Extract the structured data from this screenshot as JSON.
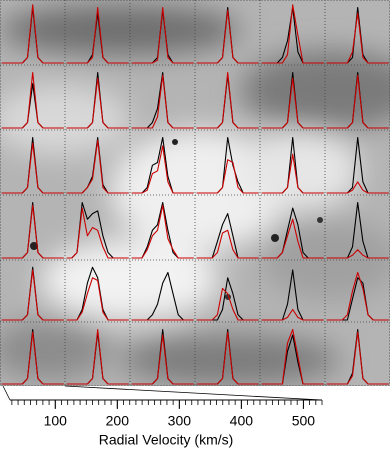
{
  "chart_data": {
    "type": "spectra-grid",
    "xlabel": "Radial Velocity (km/s)",
    "x": [
      40,
      80,
      120,
      160,
      200,
      240,
      280,
      320,
      360,
      400,
      440,
      480,
      520
    ],
    "xlim": [
      27,
      530
    ],
    "ylim": [
      0,
      1.1
    ],
    "xticks": [
      100,
      200,
      300,
      400,
      500
    ],
    "xminorticks": [
      30,
      40,
      50,
      60,
      70,
      80,
      90,
      100,
      110,
      120,
      130,
      140,
      150,
      160,
      170,
      180,
      190,
      200,
      210,
      220,
      230,
      240,
      250,
      260,
      270,
      280,
      290,
      300,
      310,
      320,
      330,
      340,
      350,
      360,
      370,
      380,
      390,
      400,
      410,
      420,
      430,
      440,
      450,
      460,
      470,
      480,
      490,
      500,
      510,
      520,
      530
    ],
    "series_colors": [
      "#000000",
      "#cc0000"
    ],
    "panels": [
      [
        [
          0,
          0,
          0,
          0,
          0,
          0.1,
          1,
          0.1,
          0,
          0,
          0,
          0,
          0
        ],
        [
          0,
          0,
          0,
          0,
          0,
          0.1,
          1.05,
          0.1,
          0,
          0,
          0,
          0,
          0
        ]
      ],
      [
        [
          0,
          0,
          0,
          0,
          0,
          0.15,
          0.9,
          0.1,
          0,
          0,
          0,
          0,
          0
        ],
        [
          0,
          0,
          0,
          0,
          0,
          0.1,
          1,
          0.1,
          0,
          0,
          0,
          0,
          0
        ]
      ],
      [
        [
          0,
          0,
          0,
          0,
          0,
          0.1,
          0.95,
          0.15,
          0,
          0,
          0,
          0,
          0
        ],
        [
          0,
          0,
          0,
          0,
          0,
          0.05,
          1,
          0.1,
          0,
          0,
          0,
          0,
          0
        ]
      ],
      [
        [
          0,
          0,
          0,
          0,
          0,
          0.1,
          1,
          0.1,
          0,
          0,
          0,
          0,
          0
        ],
        [
          0,
          0,
          0,
          0,
          0,
          0.1,
          0.95,
          0.1,
          0,
          0,
          0,
          0,
          0
        ]
      ],
      [
        [
          0,
          0,
          0,
          0,
          0.1,
          0.4,
          1,
          0.2,
          0,
          0,
          0,
          0,
          0
        ],
        [
          0,
          0,
          0,
          0,
          0,
          0.15,
          1.05,
          0.5,
          0,
          0,
          0,
          0,
          0
        ]
      ],
      [
        [
          0,
          0,
          0,
          0,
          0,
          0.1,
          1,
          0.15,
          0,
          0,
          0,
          0,
          0
        ],
        [
          0,
          0,
          0,
          0,
          0,
          0.2,
          0.9,
          0.1,
          0,
          0,
          0,
          0,
          0
        ]
      ],
      [
        [
          0,
          0,
          0,
          0,
          0,
          0.1,
          0.8,
          0.1,
          0,
          0,
          0,
          0,
          0
        ],
        [
          0,
          0,
          0,
          0,
          0,
          0.1,
          1,
          0.1,
          0,
          0,
          0,
          0,
          0
        ]
      ],
      [
        [
          0,
          0,
          0,
          0,
          0,
          0.1,
          1,
          0.1,
          0,
          0,
          0,
          0,
          0
        ],
        [
          0,
          0,
          0,
          0,
          0,
          0.1,
          0.9,
          0.1,
          0,
          0,
          0,
          0,
          0
        ]
      ],
      [
        [
          0,
          0,
          0,
          0,
          0.1,
          0.35,
          1,
          0.1,
          0,
          0,
          0,
          0,
          0
        ],
        [
          0,
          0,
          0,
          0,
          0,
          0.2,
          0.95,
          0.1,
          0,
          0,
          0,
          0,
          0
        ]
      ],
      [
        [
          0,
          0,
          0,
          0,
          0,
          0.1,
          0.95,
          0.1,
          0,
          0,
          0,
          0,
          0
        ],
        [
          0,
          0,
          0,
          0,
          0,
          0.1,
          1,
          0.1,
          0,
          0,
          0,
          0,
          0
        ]
      ],
      [
        [
          0,
          0,
          0,
          0,
          0,
          0.1,
          1,
          0.1,
          0,
          0,
          0,
          0,
          0
        ],
        [
          0,
          0,
          0,
          0,
          0,
          0.1,
          0.9,
          0.1,
          0,
          0,
          0,
          0,
          0
        ]
      ],
      [
        [
          0,
          0,
          0,
          0,
          0,
          0.1,
          1,
          0.1,
          0,
          0,
          0,
          0,
          0
        ],
        [
          0,
          0,
          0,
          0,
          0,
          0.1,
          0.95,
          0.1,
          0,
          0,
          0,
          0,
          0
        ]
      ],
      [
        [
          0,
          0,
          0,
          0,
          0,
          0.1,
          1,
          0.1,
          0,
          0,
          0,
          0,
          0
        ],
        [
          0,
          0,
          0,
          0,
          0,
          0.1,
          0.9,
          0.1,
          0,
          0,
          0,
          0,
          0
        ]
      ],
      [
        [
          0,
          0,
          0,
          0,
          0.1,
          0.3,
          1,
          0.15,
          0,
          0,
          0,
          0,
          0
        ],
        [
          0,
          0,
          0,
          0,
          0.1,
          0.25,
          0.95,
          0.1,
          0,
          0,
          0,
          0,
          0
        ]
      ],
      [
        [
          0,
          0,
          0,
          0.1,
          0.5,
          0.55,
          1,
          0.3,
          0,
          0,
          0,
          0,
          0
        ],
        [
          0,
          0,
          0,
          0.05,
          0.35,
          0.4,
          0.85,
          0.2,
          0,
          0,
          0,
          0,
          0
        ]
      ],
      [
        [
          0,
          0,
          0,
          0,
          0,
          0.1,
          1,
          0.5,
          0.2,
          0,
          0,
          0,
          0
        ],
        [
          0,
          0,
          0,
          0,
          0,
          0.1,
          0.6,
          0.55,
          0.1,
          0,
          0,
          0,
          0
        ]
      ],
      [
        [
          0,
          0,
          0,
          0,
          0,
          0.1,
          1,
          0.1,
          0,
          0,
          0,
          0,
          0
        ],
        [
          0,
          0,
          0,
          0,
          0,
          0.1,
          0.7,
          0.1,
          0,
          0,
          0,
          0,
          0
        ]
      ],
      [
        [
          0,
          0,
          0,
          0,
          0,
          0.1,
          1,
          0.2,
          0,
          0,
          0,
          0,
          0
        ],
        [
          0,
          0,
          0,
          0,
          0,
          0.05,
          0.2,
          0.05,
          0,
          0,
          0,
          0,
          0
        ]
      ],
      [
        [
          0,
          0,
          0,
          0,
          0,
          0.1,
          1,
          0.1,
          0,
          0,
          0,
          0,
          0
        ],
        [
          0,
          0,
          0,
          0,
          0,
          0.1,
          0.95,
          0.1,
          0,
          0,
          0,
          0,
          0
        ]
      ],
      [
        [
          0,
          0,
          0.1,
          1,
          0.7,
          0.8,
          0.85,
          0.4,
          0.1,
          0,
          0,
          0,
          0
        ],
        [
          0,
          0,
          0.1,
          0.9,
          0.4,
          0.55,
          0.5,
          0.2,
          0,
          0,
          0,
          0,
          0
        ]
      ],
      [
        [
          0,
          0,
          0,
          0.2,
          0.5,
          0.6,
          1,
          0.5,
          0.1,
          0,
          0,
          0,
          0
        ],
        [
          0,
          0,
          0,
          0.15,
          0.4,
          0.5,
          0.95,
          0.35,
          0.15,
          0,
          0,
          0,
          0
        ]
      ],
      [
        [
          0,
          0,
          0,
          0,
          0.3,
          0.6,
          0.8,
          0.4,
          0,
          0,
          0,
          0,
          0
        ],
        [
          0,
          0,
          0,
          0,
          0.1,
          0.45,
          0.5,
          0.15,
          0,
          0,
          0,
          0,
          0
        ]
      ],
      [
        [
          0,
          0,
          0,
          0,
          0.1,
          0.5,
          0.9,
          0.6,
          0.1,
          0,
          0,
          0,
          0
        ],
        [
          0,
          0,
          0,
          0,
          0.1,
          0.4,
          0.7,
          0.3,
          0,
          0,
          0,
          0,
          0
        ]
      ],
      [
        [
          0,
          0,
          0,
          0,
          0,
          0.2,
          1,
          0.3,
          0,
          0,
          0,
          0,
          0
        ],
        [
          0,
          0,
          0,
          0,
          0,
          0.05,
          0.15,
          0.05,
          0,
          0,
          0,
          0,
          0
        ]
      ],
      [
        [
          0,
          0,
          0,
          0,
          0,
          0.1,
          1,
          0.1,
          0,
          0,
          0,
          0,
          0
        ],
        [
          0,
          0,
          0,
          0,
          0,
          0.1,
          0.95,
          0.1,
          0,
          0,
          0,
          0,
          0
        ]
      ],
      [
        [
          0,
          0,
          0,
          0.2,
          0.7,
          1,
          0.8,
          0.2,
          0,
          0,
          0,
          0,
          0
        ],
        [
          0,
          0,
          0,
          0.15,
          0.5,
          0.8,
          0.75,
          0.15,
          0,
          0,
          0,
          0,
          0
        ]
      ],
      [
        [
          0,
          0,
          0,
          0,
          0.1,
          0.3,
          0.7,
          0.9,
          0.5,
          0.1,
          0,
          0,
          0
        ],
        [
          0,
          0,
          0,
          0,
          0,
          0,
          0,
          0,
          0,
          0,
          0,
          0,
          0
        ]
      ],
      [
        [
          0,
          0,
          0,
          0,
          0,
          0.2,
          0.8,
          0.5,
          0.1,
          0,
          0,
          0,
          0
        ],
        [
          0,
          0,
          0,
          0,
          0.1,
          0.6,
          0.5,
          0.2,
          0,
          0,
          0,
          0,
          0
        ]
      ],
      [
        [
          0,
          0,
          0,
          0,
          0,
          0.3,
          0.95,
          0.2,
          0,
          0,
          0,
          0,
          0
        ],
        [
          0,
          0,
          0,
          0,
          0,
          0.05,
          0.2,
          0.05,
          0,
          0,
          0,
          0,
          0
        ]
      ],
      [
        [
          0,
          0,
          0,
          0,
          0,
          0.4,
          0.8,
          0.7,
          0.1,
          0,
          0,
          0,
          0
        ],
        [
          0,
          0,
          0,
          0,
          0.1,
          0.55,
          0.9,
          0.6,
          0.1,
          0,
          0,
          0,
          0
        ]
      ],
      [
        [
          0,
          0,
          0,
          0,
          0,
          0.1,
          1,
          0.1,
          0,
          0,
          0,
          0,
          0
        ],
        [
          0,
          0,
          0,
          0,
          0,
          0.1,
          0.95,
          0.1,
          0,
          0,
          0,
          0,
          0
        ]
      ],
      [
        [
          0,
          0,
          0,
          0,
          0,
          0.1,
          0.95,
          0.1,
          0,
          0,
          0,
          0,
          0
        ],
        [
          0,
          0,
          0,
          0,
          0,
          0.1,
          1,
          0.1,
          0,
          0,
          0,
          0,
          0
        ]
      ],
      [
        [
          0,
          0,
          0,
          0,
          0,
          0.1,
          1,
          0.1,
          0,
          0,
          0,
          0,
          0
        ],
        [
          0,
          0,
          0,
          0,
          0,
          0.1,
          0.9,
          0.1,
          0,
          0,
          0,
          0,
          0
        ]
      ],
      [
        [
          0,
          0,
          0,
          0,
          0,
          0.1,
          1,
          0.1,
          0,
          0,
          0,
          0,
          0
        ],
        [
          0,
          0,
          0,
          0,
          0,
          0.1,
          0.95,
          0.1,
          0,
          0,
          0,
          0,
          0
        ]
      ],
      [
        [
          0,
          0,
          0,
          0,
          0,
          0.6,
          0.9,
          0.4,
          0,
          0,
          0,
          0,
          0
        ],
        [
          0,
          0,
          0,
          0,
          0,
          0.75,
          1,
          0.5,
          0,
          0,
          0,
          0,
          0
        ]
      ],
      [
        [
          0,
          0,
          0,
          0,
          0,
          0.2,
          1,
          0.1,
          0,
          0,
          0,
          0,
          0
        ],
        [
          0,
          0,
          0,
          0,
          0,
          0.15,
          0.95,
          0.1,
          0,
          0,
          0,
          0,
          0
        ]
      ]
    ]
  }
}
